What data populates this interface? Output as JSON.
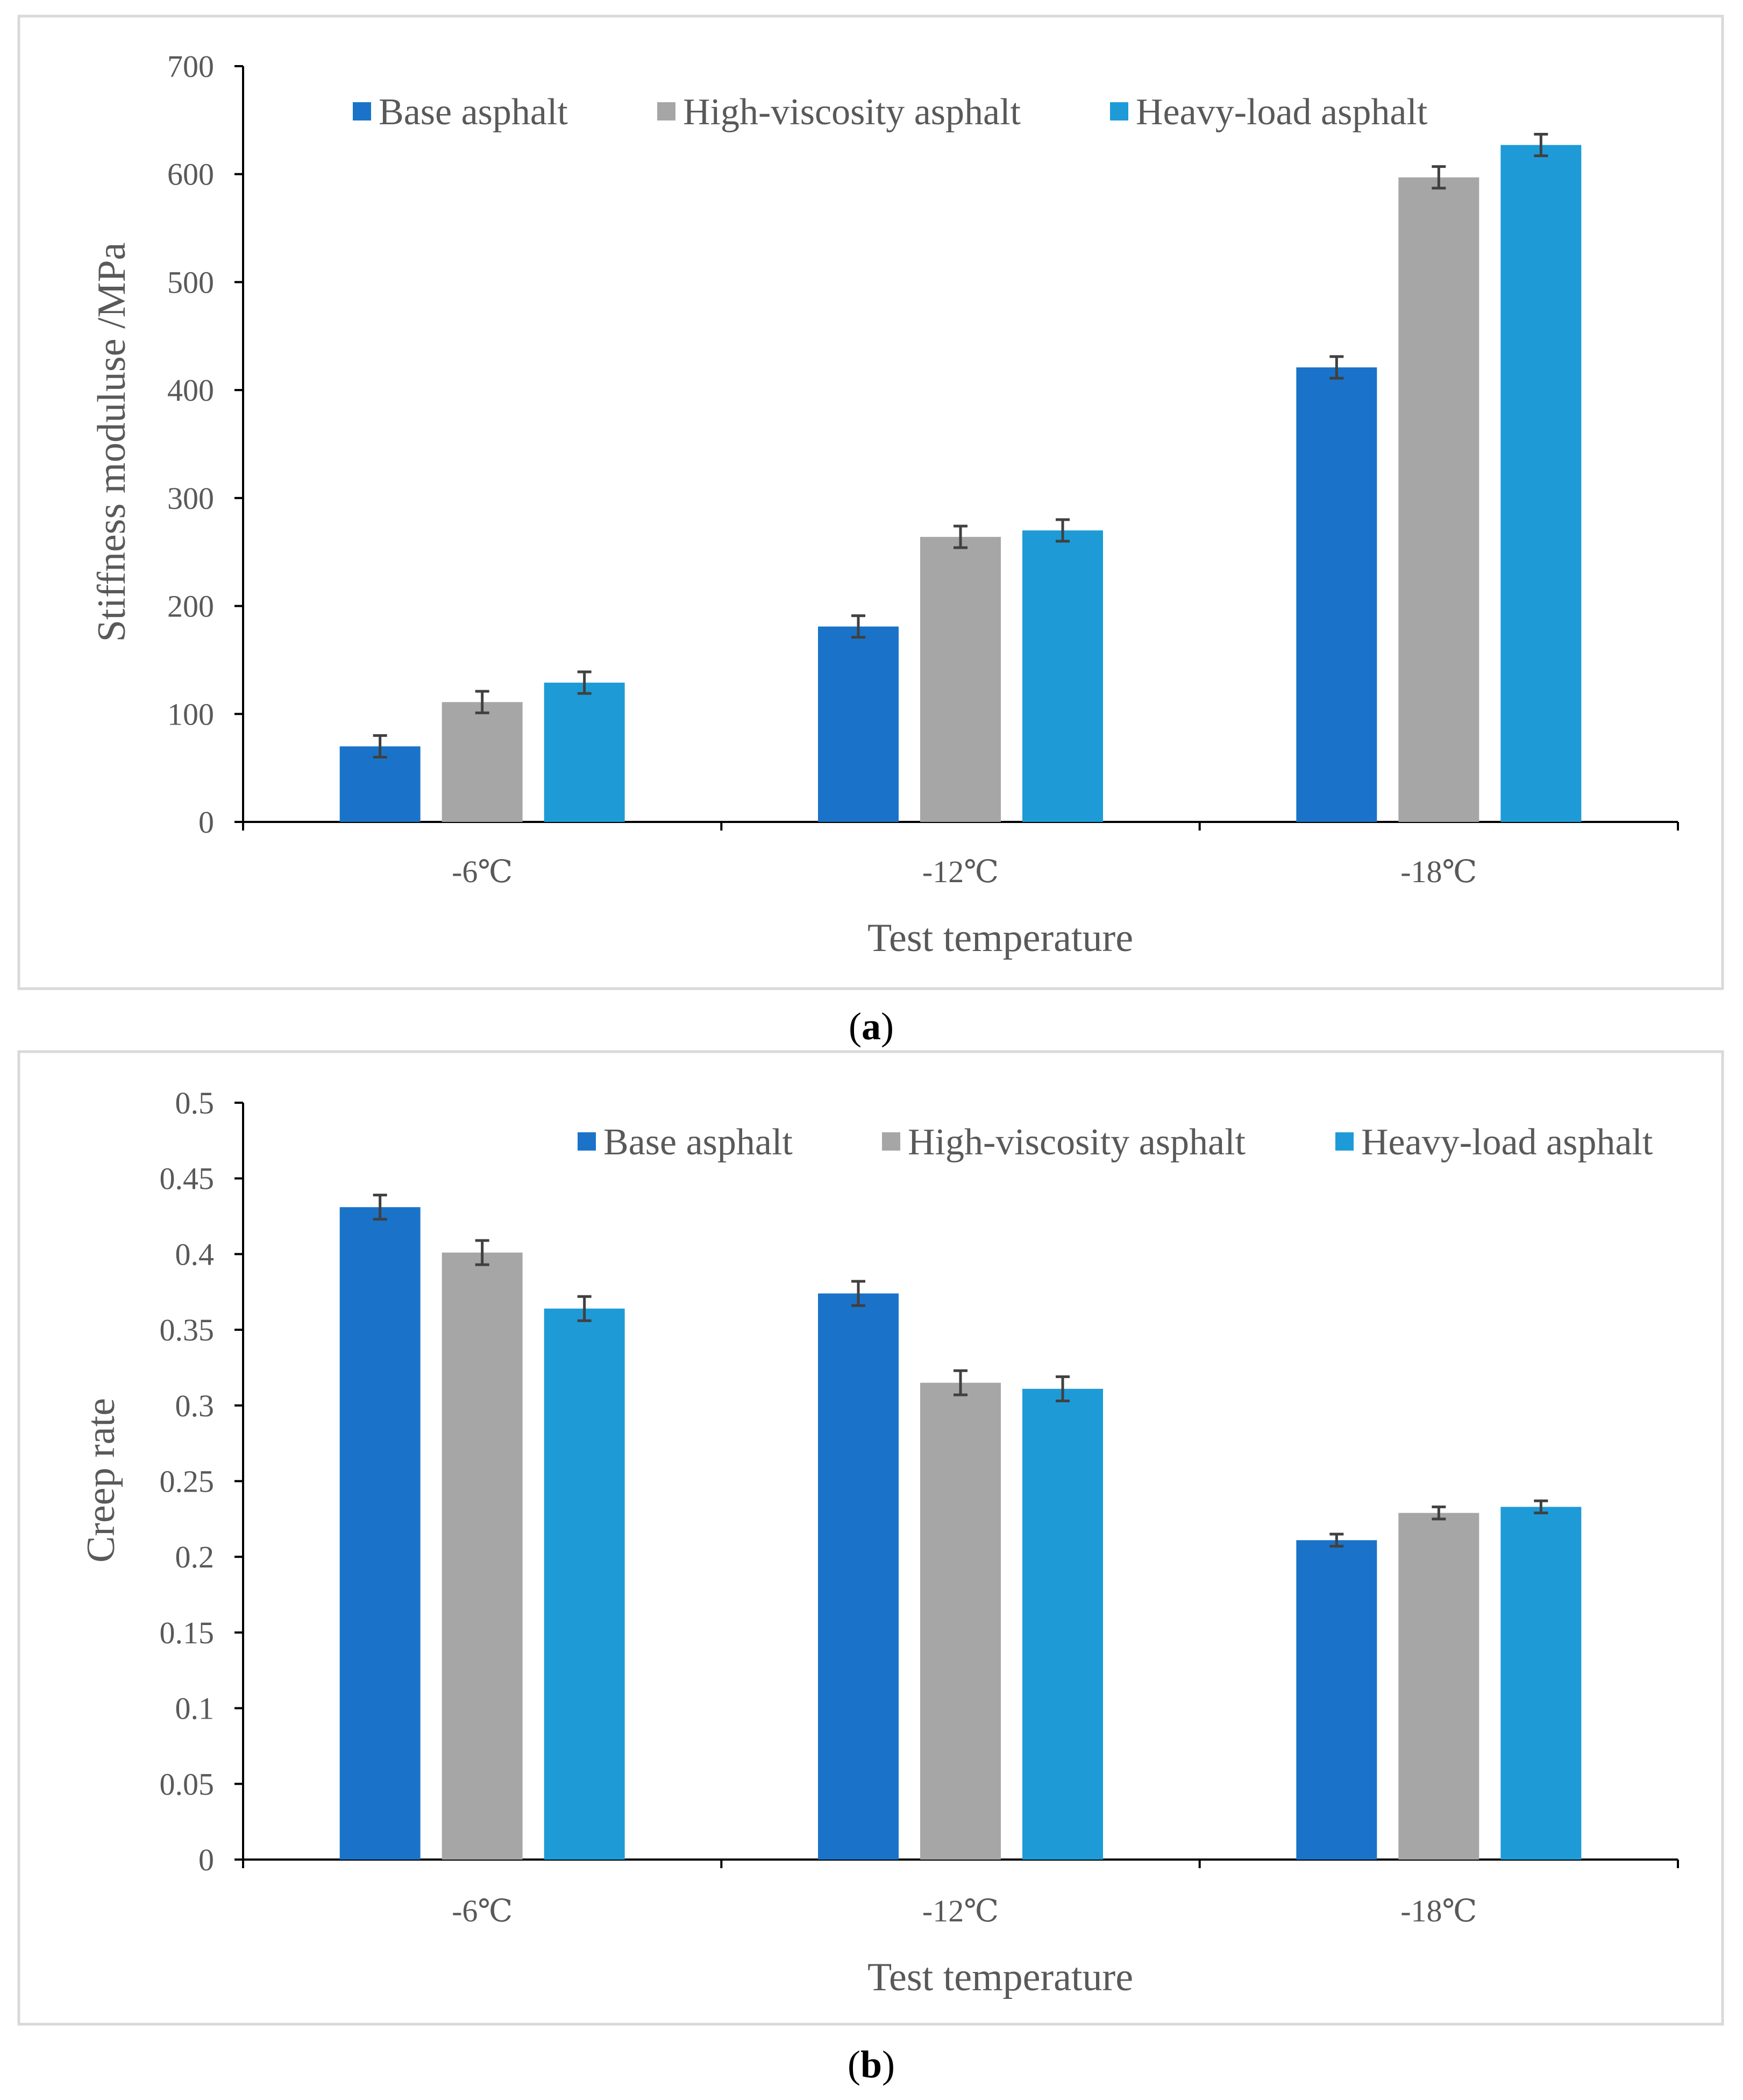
{
  "colors": {
    "base": "#1a73c9",
    "high_viscosity": "#a6a6a6",
    "heavy_load": "#1e9bd7",
    "axis": "#000000",
    "text": "#595959",
    "frame": "#d9d9d9",
    "error_bar": "#404040"
  },
  "panels": [
    {
      "label_open": "(",
      "label_letter": "a",
      "label_close": ")"
    },
    {
      "label_open": "(",
      "label_letter": "b",
      "label_close": ")"
    }
  ],
  "chart_data": [
    {
      "type": "bar",
      "title": "",
      "xlabel": "Test temperature",
      "ylabel": "Stiffness moduluse /MPa",
      "categories": [
        "-6℃",
        "-12℃",
        "-18℃"
      ],
      "ylim": [
        0,
        700
      ],
      "yticks": [
        "0",
        "100",
        "200",
        "300",
        "400",
        "500",
        "600",
        "700"
      ],
      "ytick_values": [
        0,
        100,
        200,
        300,
        400,
        500,
        600,
        700
      ],
      "legend_position": "top",
      "grid": false,
      "series": [
        {
          "name": "Base asphalt",
          "values": [
            70,
            181,
            421
          ],
          "errors": [
            10,
            10,
            10
          ]
        },
        {
          "name": "High-viscosity asphalt",
          "values": [
            111,
            264,
            597
          ],
          "errors": [
            10,
            10,
            10
          ]
        },
        {
          "name": "Heavy-load asphalt",
          "values": [
            129,
            270,
            627
          ],
          "errors": [
            10,
            10,
            10
          ]
        }
      ]
    },
    {
      "type": "bar",
      "title": "",
      "xlabel": "Test temperature",
      "ylabel": "Creep rate",
      "categories": [
        "-6℃",
        "-12℃",
        "-18℃"
      ],
      "ylim": [
        0,
        0.5
      ],
      "yticks": [
        "0",
        "0.05",
        "0.1",
        "0.15",
        "0.2",
        "0.25",
        "0.3",
        "0.35",
        "0.4",
        "0.45",
        "0.5"
      ],
      "ytick_values": [
        0,
        0.05,
        0.1,
        0.15,
        0.2,
        0.25,
        0.3,
        0.35,
        0.4,
        0.45,
        0.5
      ],
      "legend_position": "top-right",
      "grid": false,
      "series": [
        {
          "name": "Base asphalt",
          "values": [
            0.431,
            0.374,
            0.211
          ],
          "errors": [
            0.008,
            0.008,
            0.004
          ]
        },
        {
          "name": "High-viscosity asphalt",
          "values": [
            0.401,
            0.315,
            0.229
          ],
          "errors": [
            0.008,
            0.008,
            0.004
          ]
        },
        {
          "name": "Heavy-load asphalt",
          "values": [
            0.364,
            0.311,
            0.233
          ],
          "errors": [
            0.008,
            0.008,
            0.004
          ]
        }
      ]
    }
  ]
}
